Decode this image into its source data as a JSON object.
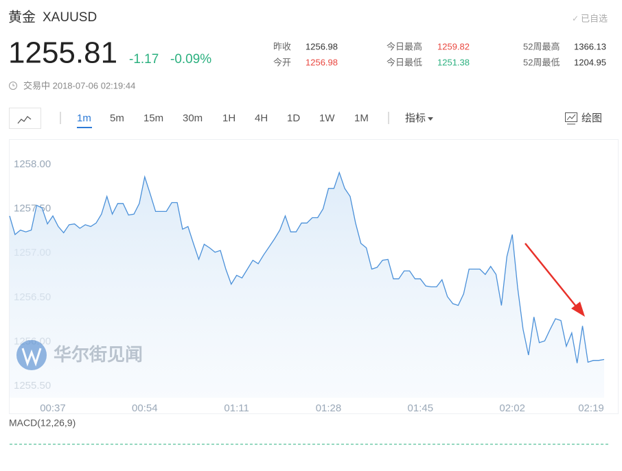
{
  "header": {
    "name": "黄金",
    "symbol": "XAUUSD",
    "watch": "已自选",
    "price": "1255.81",
    "change": "-1.17",
    "change_pct": "-0.09%",
    "change_color": "#2bb07f",
    "status": "交易中 2018-07-06 02:19:44",
    "stats": [
      {
        "label": "昨收",
        "value": "1256.98",
        "color": "#333333"
      },
      {
        "label": "今开",
        "value": "1256.98",
        "color": "#e9473f"
      },
      {
        "label": "今日最高",
        "value": "1259.82",
        "color": "#e9473f"
      },
      {
        "label": "今日最低",
        "value": "1251.38",
        "color": "#2bb07f"
      },
      {
        "label": "52周最高",
        "value": "1366.13",
        "color": "#333333"
      },
      {
        "label": "52周最低",
        "value": "1204.95",
        "color": "#333333"
      }
    ]
  },
  "toolbar": {
    "intervals": [
      "1m",
      "5m",
      "15m",
      "30m",
      "1H",
      "4H",
      "1D",
      "1W",
      "1M"
    ],
    "active_interval": 0,
    "indicators": "指标",
    "draw": "绘图"
  },
  "watermark": "华尔街见闻",
  "macd": {
    "label": "MACD(12,26,9)"
  },
  "chart_data": {
    "type": "line",
    "color": "#4a90d9",
    "grid": false,
    "categories": [
      null,
      null,
      null,
      null,
      null,
      null,
      null,
      null,
      "00:37",
      null,
      null,
      null,
      null,
      null,
      null,
      null,
      null,
      null,
      null,
      null,
      null,
      null,
      null,
      null,
      null,
      "00:54",
      null,
      null,
      null,
      null,
      null,
      null,
      null,
      null,
      null,
      null,
      null,
      null,
      null,
      null,
      null,
      null,
      "01:11",
      null,
      null,
      null,
      null,
      null,
      null,
      null,
      null,
      null,
      null,
      null,
      null,
      null,
      null,
      null,
      null,
      "01:28",
      null,
      null,
      null,
      null,
      null,
      null,
      null,
      null,
      null,
      null,
      null,
      null,
      null,
      null,
      null,
      null,
      "01:45",
      null,
      null,
      null,
      null,
      null,
      null,
      null,
      null,
      null,
      null,
      null,
      null,
      null,
      null,
      null,
      null,
      "02:02",
      null,
      null,
      null,
      null,
      null,
      null,
      null,
      null,
      null,
      null,
      null,
      null,
      null,
      null,
      null,
      null,
      "02:19"
    ],
    "values": [
      1257.42,
      1257.21,
      1257.26,
      1257.24,
      1257.26,
      1257.54,
      1257.51,
      1257.33,
      1257.42,
      1257.3,
      1257.23,
      1257.32,
      1257.33,
      1257.28,
      1257.32,
      1257.3,
      1257.34,
      1257.44,
      1257.64,
      1257.44,
      1257.56,
      1257.56,
      1257.43,
      1257.44,
      1257.56,
      1257.86,
      1257.67,
      1257.47,
      1257.47,
      1257.47,
      1257.57,
      1257.57,
      1257.27,
      1257.3,
      1257.11,
      1256.93,
      1257.1,
      1257.06,
      1257.01,
      1257.03,
      1256.82,
      1256.65,
      1256.75,
      1256.72,
      1256.82,
      1256.92,
      1256.88,
      1256.98,
      1257.07,
      1257.16,
      1257.26,
      1257.42,
      1257.24,
      1257.24,
      1257.34,
      1257.34,
      1257.4,
      1257.4,
      1257.5,
      1257.73,
      1257.73,
      1257.91,
      1257.73,
      1257.64,
      1257.34,
      1257.11,
      1257.06,
      1256.82,
      1256.84,
      1256.92,
      1256.93,
      1256.71,
      1256.71,
      1256.8,
      1256.8,
      1256.71,
      1256.71,
      1256.63,
      1256.62,
      1256.62,
      1256.7,
      1256.51,
      1256.43,
      1256.41,
      1256.54,
      1256.82,
      1256.82,
      1256.82,
      1256.76,
      1256.85,
      1256.76,
      1256.41,
      1256.96,
      1257.21,
      1256.61,
      1256.14,
      1255.85,
      1256.28,
      1255.99,
      1256.01,
      1256.14,
      1256.26,
      1256.24,
      1255.95,
      1256.1,
      1255.76,
      1256.18,
      1255.77,
      1255.79,
      1255.79,
      1255.8
    ],
    "ylim": [
      1255.37,
      1258.27
    ],
    "yticks": [
      {
        "value": 1255.5,
        "label": "1255.50"
      },
      {
        "value": 1256,
        "label": "1256.00"
      },
      {
        "value": 1256.5,
        "label": "1256.50"
      },
      {
        "value": 1257,
        "label": "1257.00"
      },
      {
        "value": 1257.5,
        "label": "1257.50"
      },
      {
        "value": 1258,
        "label": "1258.00"
      }
    ]
  }
}
